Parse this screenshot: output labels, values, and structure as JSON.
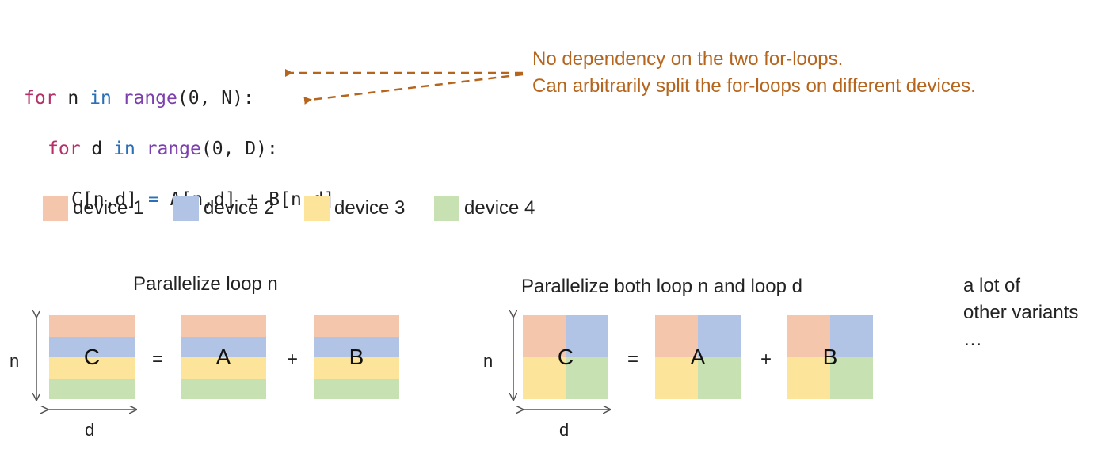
{
  "code": {
    "line1": {
      "kw": "for",
      "var": " n ",
      "in": "in",
      "fn": " range",
      "args": "(0, N):"
    },
    "line2": {
      "kw": "for",
      "var": " d ",
      "in": "in",
      "fn": " range",
      "args": "(0, D):"
    },
    "line3": {
      "lhs": "C[n,d] ",
      "eq": "=",
      "rhs": " A[n,d] + B[n,d]"
    }
  },
  "note": {
    "line1": "No dependency on the two for-loops.",
    "line2": "Can arbitrarily split the for-loops on different devices."
  },
  "colors": {
    "device1": "#f4c6ab",
    "device2": "#b2c4e6",
    "device3": "#fce49a",
    "device4": "#c7e1b2",
    "note": "#b5651d"
  },
  "legend": [
    {
      "label": "device 1",
      "color": "#f4c6ab"
    },
    {
      "label": "device 2",
      "color": "#b2c4e6"
    },
    {
      "label": "device 3",
      "color": "#fce49a"
    },
    {
      "label": "device 4",
      "color": "#c7e1b2"
    }
  ],
  "left": {
    "title": "Parallelize loop n",
    "n_label": "n",
    "d_label": "d",
    "matrices": [
      "C",
      "A",
      "B"
    ],
    "equals": "=",
    "plus": "+"
  },
  "right": {
    "title": "Parallelize both loop n and loop d",
    "n_label": "n",
    "d_label": "d",
    "matrices": [
      "C",
      "A",
      "B"
    ],
    "equals": "=",
    "plus": "+"
  },
  "variants": {
    "line1": "a lot of",
    "line2": "other variants",
    "line3": "…"
  }
}
